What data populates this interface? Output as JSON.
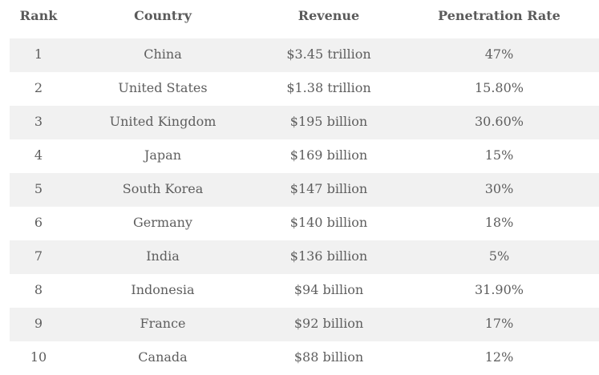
{
  "table": {
    "headers": {
      "rank": "Rank",
      "country": "Country",
      "revenue": "Revenue",
      "penetration": "Penetration Rate"
    },
    "rows": [
      {
        "rank": "1",
        "country": "China",
        "revenue": "$3.45 trillion",
        "penetration": "47%"
      },
      {
        "rank": "2",
        "country": "United States",
        "revenue": "$1.38 trillion",
        "penetration": "15.80%"
      },
      {
        "rank": "3",
        "country": "United Kingdom",
        "revenue": "$195 billion",
        "penetration": "30.60%"
      },
      {
        "rank": "4",
        "country": "Japan",
        "revenue": "$169 billion",
        "penetration": "15%"
      },
      {
        "rank": "5",
        "country": "South Korea",
        "revenue": "$147 billion",
        "penetration": "30%"
      },
      {
        "rank": "6",
        "country": "Germany",
        "revenue": "$140 billion",
        "penetration": "18%"
      },
      {
        "rank": "7",
        "country": "India",
        "revenue": "$136 billion",
        "penetration": "5%"
      },
      {
        "rank": "8",
        "country": "Indonesia",
        "revenue": "$94 billion",
        "penetration": "31.90%"
      },
      {
        "rank": "9",
        "country": "France",
        "revenue": "$92 billion",
        "penetration": "17%"
      },
      {
        "rank": "10",
        "country": "Canada",
        "revenue": "$88 billion",
        "penetration": "12%"
      }
    ]
  },
  "colors": {
    "stripe": "#f1f1f1",
    "background": "#ffffff",
    "text": "#5e5e5e"
  }
}
